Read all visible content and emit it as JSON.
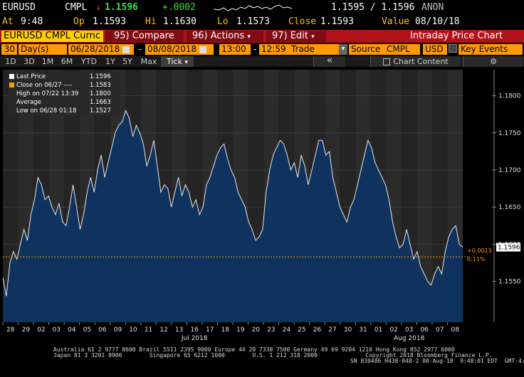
{
  "header": {
    "ticker": "EURUSD",
    "source": "CMPL",
    "arrow": "↓",
    "last": "1.1596",
    "change": "+.0002",
    "bid_ask": "1.1595 / 1.1596",
    "anon": "ANON",
    "at_label": "At",
    "at_time": "9:48",
    "op_label": "Op",
    "op": "1.1593",
    "hi_label": "Hi",
    "hi": "1.1630",
    "lo_label": "Lo",
    "lo": "1.1573",
    "close_label": "Close",
    "close": "1.1593",
    "value_label": "Value",
    "value_date": "08/10/18"
  },
  "toolbar": {
    "security": "EURUSD CMPL Curnc",
    "compare": "95) Compare",
    "actions": "96) Actions",
    "edit": "97) Edit",
    "title": "Intraday Price Chart",
    "dropdown": "▾"
  },
  "settings": {
    "days": "30",
    "days_label": "Day(s)",
    "start_date": "06/28/2018",
    "dash": "-",
    "end_date": "08/08/2018",
    "start_time": "13:00",
    "end_time": "12:59",
    "field": "Trade",
    "source_label": "Source",
    "source": "CMPL",
    "currency": "USD",
    "key_events": "Key Events"
  },
  "range_tabs": [
    "1D",
    "3D",
    "1M",
    "6M",
    "YTD",
    "1Y",
    "5Y",
    "Max"
  ],
  "tick_tab": "Tick",
  "collapse": "«",
  "chart_content": "Chart Content",
  "gear": "⚙",
  "legend": [
    {
      "label": "Last Price",
      "value": "1.1596",
      "color": "#ffffff"
    },
    {
      "label": "Close on 06/27 ----",
      "value": "1.1583",
      "color": "#ff9a00"
    },
    {
      "label": "High on 07/22 13:39",
      "value": "1.1800",
      "color": "#ffffff"
    },
    {
      "label": "Average",
      "value": "1.1663",
      "color": "#ffffff"
    },
    {
      "label": "Low on 06/28 01:18",
      "value": "1.1527",
      "color": "#ffffff"
    }
  ],
  "chart_data": {
    "type": "area",
    "xlabel": "",
    "ylabel": "",
    "ylim": [
      1.1495,
      1.1835
    ],
    "y_ticks": [
      "1.1550",
      "1.1600",
      "1.1650",
      "1.1700",
      "1.1750",
      "1.1800"
    ],
    "day_labels": [
      "28",
      "29",
      "02",
      "03",
      "04",
      "05",
      "06",
      "09",
      "10",
      "11",
      "12",
      "13",
      "16",
      "17",
      "18",
      "19",
      "20",
      "23",
      "24",
      "25",
      "26",
      "27",
      "30",
      "31",
      "01",
      "02",
      "03",
      "06",
      "07",
      "08"
    ],
    "month_labels": [
      {
        "label": "Jul 2018",
        "after_day": 12
      },
      {
        "label": "Aug 2018",
        "after_day": 26
      }
    ],
    "reference_close": 1.1583,
    "last_price": 1.1596,
    "last_tag": "1.1596",
    "change_tag": "+0.0013",
    "pct_tag": "0.11%",
    "series": [
      {
        "name": "Last Price",
        "values": [
          1.1555,
          1.153,
          1.1575,
          1.159,
          1.158,
          1.16,
          1.162,
          1.1605,
          1.164,
          1.166,
          1.169,
          1.168,
          1.166,
          1.1665,
          1.165,
          1.164,
          1.1655,
          1.163,
          1.1625,
          1.165,
          1.168,
          1.165,
          1.162,
          1.164,
          1.167,
          1.169,
          1.167,
          1.17,
          1.172,
          1.169,
          1.171,
          1.173,
          1.175,
          1.176,
          1.1765,
          1.178,
          1.177,
          1.1745,
          1.176,
          1.175,
          1.1735,
          1.1705,
          1.172,
          1.174,
          1.1705,
          1.167,
          1.168,
          1.1675,
          1.165,
          1.167,
          1.169,
          1.1665,
          1.168,
          1.167,
          1.165,
          1.166,
          1.164,
          1.165,
          1.168,
          1.169,
          1.1705,
          1.172,
          1.173,
          1.1735,
          1.1715,
          1.17,
          1.169,
          1.167,
          1.166,
          1.165,
          1.163,
          1.162,
          1.1605,
          1.161,
          1.162,
          1.167,
          1.17,
          1.172,
          1.173,
          1.174,
          1.1735,
          1.172,
          1.17,
          1.171,
          1.169,
          1.172,
          1.1705,
          1.168,
          1.17,
          1.172,
          1.174,
          1.174,
          1.172,
          1.1725,
          1.169,
          1.167,
          1.165,
          1.164,
          1.163,
          1.165,
          1.166,
          1.168,
          1.17,
          1.172,
          1.174,
          1.173,
          1.171,
          1.17,
          1.169,
          1.168,
          1.166,
          1.163,
          1.161,
          1.1595,
          1.16,
          1.162,
          1.16,
          1.158,
          1.159,
          1.157,
          1.156,
          1.155,
          1.1545,
          1.156,
          1.157,
          1.156,
          1.159,
          1.161,
          1.162,
          1.1625,
          1.16,
          1.1596
        ]
      }
    ]
  }
}
